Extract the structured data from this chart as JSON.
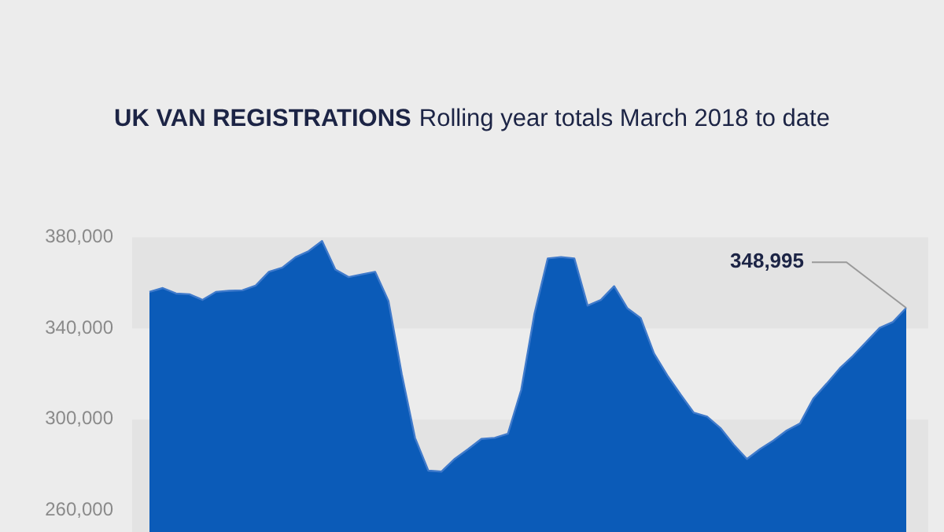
{
  "chart_data": {
    "type": "area",
    "title": "UK VAN REGISTRATIONS",
    "subtitle": "Rolling year totals March 2018 to date",
    "categories": [
      null,
      null,
      null,
      null,
      null,
      null,
      null,
      null,
      null,
      null,
      null,
      null,
      null,
      null,
      null,
      null,
      null,
      null,
      null,
      null,
      null,
      null,
      null,
      null,
      null,
      null,
      null,
      null,
      null,
      null,
      null,
      null,
      null,
      null,
      null,
      null,
      null,
      null,
      null,
      null,
      null,
      null,
      null,
      null,
      null,
      null,
      null,
      null,
      null,
      null,
      null,
      null,
      null,
      null,
      null,
      null,
      null,
      null
    ],
    "series": [
      {
        "color": "#0b5bb8",
        "values": [
          356000,
          357700,
          355300,
          355000,
          352500,
          356000,
          356500,
          356700,
          358800,
          364800,
          366600,
          371200,
          373900,
          378300,
          365800,
          362500,
          363700,
          364800,
          352000,
          320000,
          292000,
          277600,
          277200,
          282800,
          287000,
          291500,
          292000,
          293800,
          313000,
          346500,
          370700,
          371300,
          370700,
          350000,
          352500,
          358500,
          348800,
          344500,
          329000,
          319400,
          311000,
          303000,
          301300,
          296300,
          289000,
          282700,
          287100,
          290800,
          295200,
          298300,
          309200,
          315700,
          322500,
          328000,
          334100,
          340200,
          342800,
          348995
        ]
      }
    ],
    "ylim": [
      250000,
      380000
    ],
    "yticks": [
      {
        "value": 260000,
        "label": "260,000"
      },
      {
        "value": 300000,
        "label": "300,000"
      },
      {
        "value": 340000,
        "label": "340,000"
      },
      {
        "value": 380000,
        "label": "380,000"
      }
    ],
    "bands": [
      {
        "axis": "y",
        "from": 340000,
        "to": 380000,
        "color": "#e3e3e3"
      },
      {
        "axis": "y",
        "from": 250000,
        "to": 300000,
        "color": "#e3e3e3"
      }
    ],
    "annotations": [
      "348,995"
    ]
  }
}
